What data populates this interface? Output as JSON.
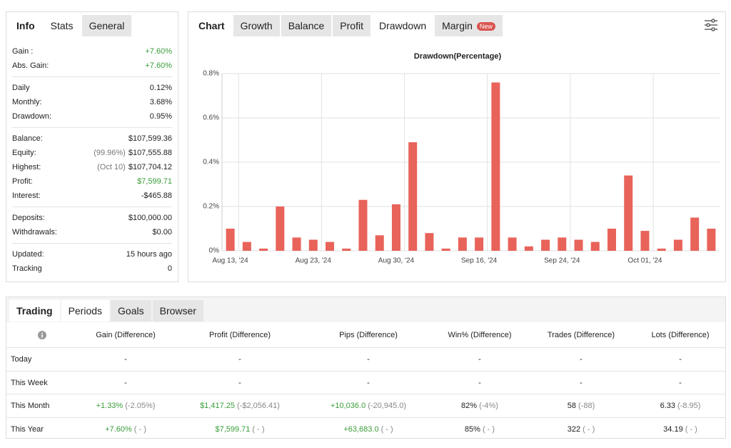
{
  "stats_panel": {
    "tabs": [
      "Info",
      "Stats",
      "General"
    ],
    "active_tab": 1,
    "groups": [
      [
        {
          "label": "Gain :",
          "value": "+7.60%",
          "color": "#3a9d3a"
        },
        {
          "label": "Abs. Gain:",
          "value": "+7.60%",
          "color": "#3a9d3a"
        }
      ],
      [
        {
          "label": "Daily",
          "value": "0.12%"
        },
        {
          "label": "Monthly:",
          "value": "3.68%"
        },
        {
          "label": "Drawdown:",
          "value": "0.95%"
        }
      ],
      [
        {
          "label": "Balance:",
          "value": "$107,599.36"
        },
        {
          "label": "Equity:",
          "note": "(99.96%)",
          "value": "$107,555.88"
        },
        {
          "label": "Highest:",
          "note": "(Oct 10)",
          "value": "$107,704.12"
        },
        {
          "label": "Profit:",
          "value": "$7,599.71",
          "color": "#3a9d3a"
        },
        {
          "label": "Interest:",
          "value": "-$465.88"
        }
      ],
      [
        {
          "label": "Deposits:",
          "value": "$100,000.00"
        },
        {
          "label": "Withdrawals:",
          "value": "$0.00"
        }
      ],
      [
        {
          "label": "Updated:",
          "value": "15 hours ago"
        },
        {
          "label": "Tracking",
          "value": "0"
        }
      ]
    ]
  },
  "chart_tabs": {
    "tabs": [
      "Chart",
      "Growth",
      "Balance",
      "Profit",
      "Drawdown",
      "Margin"
    ],
    "active_tab": 4,
    "badge": "New"
  },
  "chart_data": {
    "type": "bar",
    "title": "Drawdown(Percentage)",
    "categories": [
      "Aug 13, '24",
      null,
      null,
      null,
      null,
      "Aug 23, '24",
      null,
      null,
      null,
      null,
      "Aug 30, '24",
      null,
      null,
      null,
      null,
      "Sep 16, '24",
      null,
      null,
      null,
      null,
      "Sep 24, '24",
      null,
      null,
      null,
      null,
      "Oct 01, '24",
      null,
      null,
      null,
      null
    ],
    "values": [
      0.1,
      0.04,
      0.01,
      0.2,
      0.06,
      0.05,
      0.04,
      0.01,
      0.23,
      0.07,
      0.21,
      0.49,
      0.08,
      0.01,
      0.06,
      0.06,
      0.76,
      0.06,
      0.02,
      0.05,
      0.06,
      0.05,
      0.04,
      0.1,
      0.34,
      0.09,
      0.01,
      0.05,
      0.15,
      0.1
    ],
    "color": "#e8635a",
    "ylim": [
      0,
      0.8
    ],
    "yticks": [
      {
        "value": 0,
        "label": "0%"
      },
      {
        "value": 0.2,
        "label": "0.2%"
      },
      {
        "value": 0.4,
        "label": "0.4%"
      },
      {
        "value": 0.6,
        "label": "0.6%"
      },
      {
        "value": 0.8,
        "label": "0.8%"
      }
    ],
    "grid": true
  },
  "periods": {
    "tabs": [
      "Trading",
      "Periods",
      "Goals",
      "Browser"
    ],
    "active_tab": 1,
    "columns": [
      "Gain (Difference)",
      "Profit (Difference)",
      "Pips (Difference)",
      "Win% (Difference)",
      "Trades (Difference)",
      "Lots (Difference)"
    ],
    "rows": [
      {
        "label": "Today",
        "cells": [
          {
            "value": "-"
          },
          {
            "value": "-"
          },
          {
            "value": "-"
          },
          {
            "value": "-"
          },
          {
            "value": "-"
          },
          {
            "value": "-"
          }
        ]
      },
      {
        "label": "This Week",
        "cells": [
          {
            "value": "-"
          },
          {
            "value": "-"
          },
          {
            "value": "-"
          },
          {
            "value": "-"
          },
          {
            "value": "-"
          },
          {
            "value": "-"
          }
        ]
      },
      {
        "label": "This Month",
        "cells": [
          {
            "value": "+1.33%",
            "diff": "(-2.05%)",
            "color": "#3a9d3a"
          },
          {
            "value": "$1,417.25",
            "diff": "(-$2,056.41)",
            "color": "#3a9d3a"
          },
          {
            "value": "+10,036.0",
            "diff": "(-20,945.0)",
            "color": "#3a9d3a"
          },
          {
            "value": "82%",
            "diff": "(-4%)"
          },
          {
            "value": "58",
            "diff": "(-88)"
          },
          {
            "value": "6.33",
            "diff": "(-8.95)"
          }
        ]
      },
      {
        "label": "This Year",
        "cells": [
          {
            "value": "+7.60%",
            "diff": "( - )",
            "color": "#3a9d3a"
          },
          {
            "value": "$7,599.71",
            "diff": "( - )",
            "color": "#3a9d3a"
          },
          {
            "value": "+63,683.0",
            "diff": "( - )",
            "color": "#3a9d3a"
          },
          {
            "value": "85%",
            "diff": "( - )"
          },
          {
            "value": "322",
            "diff": "( - )"
          },
          {
            "value": "34.19",
            "diff": "( - )"
          }
        ]
      }
    ]
  }
}
